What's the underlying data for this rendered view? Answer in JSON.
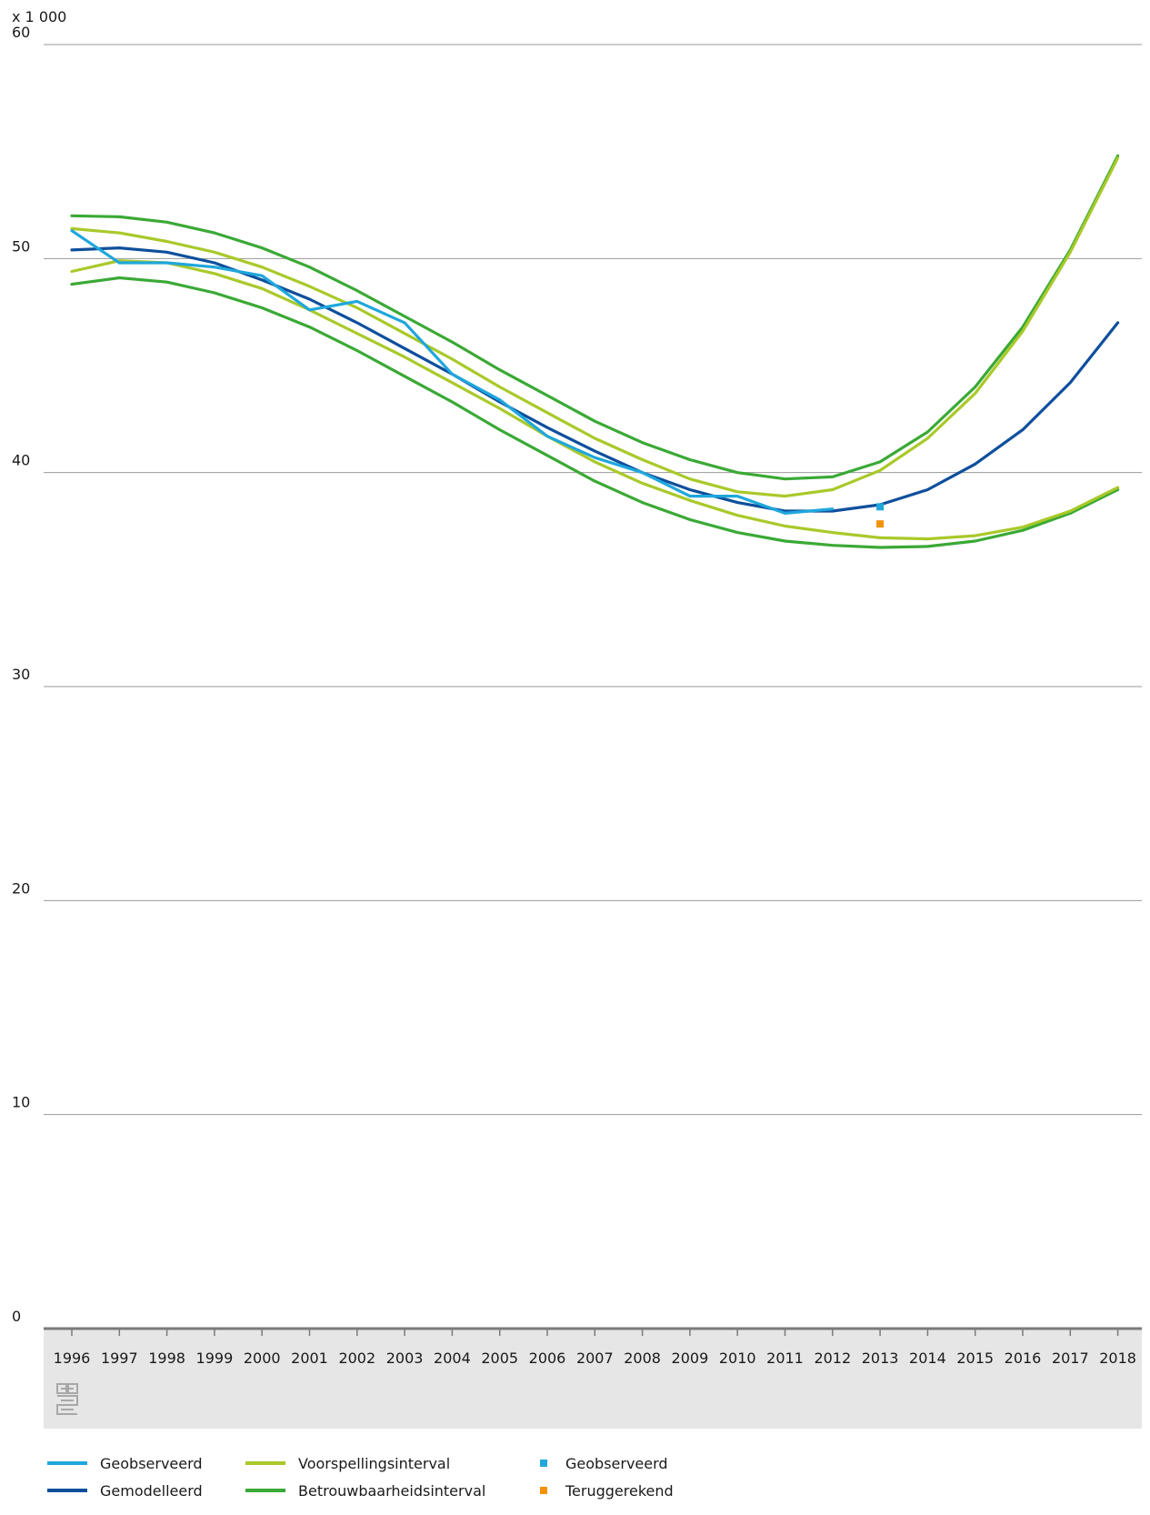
{
  "chart_data": {
    "type": "line",
    "unit_label": "x 1 000",
    "ylim": [
      0,
      60
    ],
    "yticks": [
      0,
      10,
      20,
      30,
      40,
      50,
      60
    ],
    "grid": true,
    "x": [
      1996,
      1997,
      1998,
      1999,
      2000,
      2001,
      2002,
      2003,
      2004,
      2005,
      2006,
      2007,
      2008,
      2009,
      2010,
      2011,
      2012,
      2013,
      2014,
      2015,
      2016,
      2017,
      2018
    ],
    "series": [
      {
        "name": "Geobserveerd",
        "style": "line",
        "color": "#1fa7dc",
        "x": [
          1996,
          1997,
          1998,
          1999,
          2000,
          2001,
          2002,
          2003,
          2004,
          2005,
          2006,
          2007,
          2008,
          2009,
          2010,
          2011,
          2012
        ],
        "values": [
          51.3,
          49.8,
          49.8,
          49.6,
          49.2,
          47.6,
          48.0,
          47.0,
          44.6,
          43.4,
          41.7,
          40.7,
          40.0,
          38.9,
          38.9,
          38.1,
          38.3
        ]
      },
      {
        "name": "Gemodelleerd",
        "style": "line",
        "color": "#0e4f9c",
        "x": [
          1996,
          1997,
          1998,
          1999,
          2000,
          2001,
          2002,
          2003,
          2004,
          2005,
          2006,
          2007,
          2008,
          2009,
          2010,
          2011,
          2012,
          2013,
          2014,
          2015,
          2016,
          2017,
          2018
        ],
        "values": [
          50.4,
          50.5,
          50.3,
          49.8,
          49.0,
          48.1,
          47.0,
          45.8,
          44.6,
          43.3,
          42.1,
          41.0,
          40.0,
          39.2,
          38.6,
          38.2,
          38.2,
          38.5,
          39.2,
          40.4,
          42.0,
          44.2,
          47.0
        ]
      },
      {
        "name": "Voorspellingsinterval",
        "style": "line",
        "color": "#a9c92a",
        "part": "upper",
        "x": [
          1996,
          1997,
          1998,
          1999,
          2000,
          2001,
          2002,
          2003,
          2004,
          2005,
          2006,
          2007,
          2008,
          2009,
          2010,
          2011,
          2012,
          2013,
          2014,
          2015,
          2016,
          2017,
          2018
        ],
        "values": [
          51.4,
          51.2,
          50.8,
          50.3,
          49.6,
          48.7,
          47.7,
          46.5,
          45.3,
          44.0,
          42.8,
          41.6,
          40.6,
          39.7,
          39.1,
          38.9,
          39.2,
          40.1,
          41.6,
          43.7,
          46.6,
          50.3,
          54.7
        ]
      },
      {
        "name": "Voorspellingsinterval",
        "style": "line",
        "color": "#a9c92a",
        "part": "lower",
        "x": [
          1996,
          1997,
          1998,
          1999,
          2000,
          2001,
          2002,
          2003,
          2004,
          2005,
          2006,
          2007,
          2008,
          2009,
          2010,
          2011,
          2012,
          2013,
          2014,
          2015,
          2016,
          2017,
          2018
        ],
        "values": [
          49.4,
          49.9,
          49.8,
          49.3,
          48.6,
          47.6,
          46.5,
          45.4,
          44.2,
          43.0,
          41.7,
          40.5,
          39.5,
          38.7,
          38.0,
          37.5,
          37.2,
          36.95,
          36.9,
          37.05,
          37.45,
          38.2,
          39.3
        ]
      },
      {
        "name": "Betrouwbaarheidsinterval",
        "style": "line",
        "color": "#3aa935",
        "part": "upper",
        "x": [
          1996,
          1997,
          1998,
          1999,
          2000,
          2001,
          2002,
          2003,
          2004,
          2005,
          2006,
          2007,
          2008,
          2009,
          2010,
          2011,
          2012,
          2013,
          2014,
          2015,
          2016,
          2017,
          2018
        ],
        "values": [
          52.0,
          51.95,
          51.7,
          51.2,
          50.5,
          49.6,
          48.5,
          47.3,
          46.1,
          44.8,
          43.6,
          42.4,
          41.4,
          40.6,
          40.0,
          39.7,
          39.8,
          40.5,
          41.9,
          44.0,
          46.8,
          50.4,
          54.8
        ]
      },
      {
        "name": "Betrouwbaarheidsinterval",
        "style": "line",
        "color": "#3aa935",
        "part": "lower",
        "x": [
          1996,
          1997,
          1998,
          1999,
          2000,
          2001,
          2002,
          2003,
          2004,
          2005,
          2006,
          2007,
          2008,
          2009,
          2010,
          2011,
          2012,
          2013,
          2014,
          2015,
          2016,
          2017,
          2018
        ],
        "values": [
          48.8,
          49.1,
          48.9,
          48.4,
          47.7,
          46.8,
          45.7,
          44.5,
          43.3,
          42.0,
          40.8,
          39.6,
          38.6,
          37.8,
          37.2,
          36.8,
          36.6,
          36.5,
          36.55,
          36.8,
          37.3,
          38.1,
          39.2
        ]
      },
      {
        "name": "Geobserveerd",
        "style": "marker",
        "color": "#1fa7dc",
        "x": [
          2013
        ],
        "values": [
          38.4
        ]
      },
      {
        "name": "Teruggerekend",
        "style": "marker",
        "color": "#f39200",
        "x": [
          2013
        ],
        "values": [
          37.6
        ]
      }
    ]
  },
  "legend": {
    "col1": [
      {
        "label": "Geobserveerd",
        "color": "#1fa7dc",
        "kind": "line"
      },
      {
        "label": "Gemodelleerd",
        "color": "#0e4f9c",
        "kind": "line"
      }
    ],
    "col2": [
      {
        "label": "Voorspellingsinterval",
        "color": "#a9c92a",
        "kind": "line"
      },
      {
        "label": "Betrouwbaarheidsinterval",
        "color": "#3aa935",
        "kind": "line"
      }
    ],
    "col3": [
      {
        "label": "Geobserveerd",
        "color": "#1fa7dc",
        "kind": "marker"
      },
      {
        "label": "Teruggerekend",
        "color": "#f39200",
        "kind": "marker"
      }
    ]
  },
  "logo_icon": "cbs-logo-icon"
}
